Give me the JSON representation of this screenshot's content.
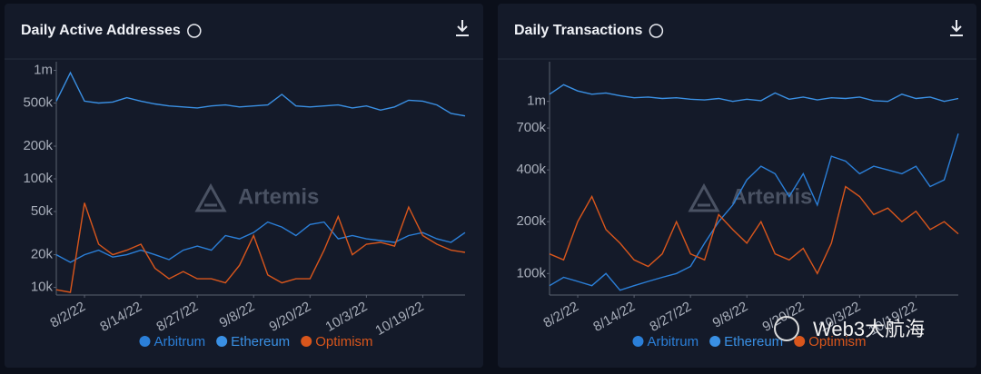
{
  "chart_data": [
    {
      "type": "line",
      "title": "Daily Active Addresses",
      "watermark": "Artemis",
      "log_scale": true,
      "grid": false,
      "categories": [
        null,
        null,
        "8/2/22",
        null,
        null,
        null,
        "8/14/22",
        null,
        null,
        null,
        "8/27/22",
        null,
        null,
        null,
        "9/8/22",
        null,
        null,
        null,
        "9/20/22",
        null,
        null,
        null,
        "10/3/22",
        null,
        null,
        null,
        "10/19/22",
        null,
        null,
        null
      ],
      "ylim": [
        8500,
        1200000
      ],
      "yticks": [
        {
          "value": 10000,
          "label": "10k"
        },
        {
          "value": 20000,
          "label": "20k"
        },
        {
          "value": 50000,
          "label": "50k"
        },
        {
          "value": 100000,
          "label": "100k"
        },
        {
          "value": 200000,
          "label": "200k"
        },
        {
          "value": 500000,
          "label": "500k"
        },
        {
          "value": 1000000,
          "label": "1m"
        }
      ],
      "series": [
        {
          "name": "Arbitrum",
          "color": "#2b7fd8",
          "values": [
            20000,
            17000,
            20000,
            22000,
            19000,
            20000,
            22000,
            20000,
            18000,
            22000,
            24000,
            22000,
            30000,
            28000,
            32000,
            40000,
            36000,
            30000,
            38000,
            40000,
            28000,
            30000,
            28000,
            27000,
            26000,
            30000,
            32000,
            28000,
            26000,
            32000
          ]
        },
        {
          "name": "Ethereum",
          "color": "#3a90e4",
          "values": [
            520000,
            950000,
            520000,
            500000,
            510000,
            560000,
            520000,
            490000,
            470000,
            460000,
            450000,
            470000,
            480000,
            460000,
            470000,
            480000,
            600000,
            470000,
            460000,
            470000,
            480000,
            450000,
            470000,
            430000,
            460000,
            530000,
            520000,
            480000,
            400000,
            380000
          ]
        },
        {
          "name": "Optimism",
          "color": "#d9561c",
          "values": [
            9500,
            9000,
            60000,
            25000,
            20000,
            22000,
            25000,
            15000,
            12000,
            14000,
            12000,
            12000,
            11000,
            16000,
            30000,
            13000,
            11000,
            12000,
            12000,
            22000,
            45000,
            20000,
            25000,
            26000,
            24000,
            55000,
            30000,
            25000,
            22000,
            21000
          ]
        }
      ]
    },
    {
      "type": "line",
      "title": "Daily Transactions",
      "watermark": "Artemis",
      "log_scale": true,
      "grid": false,
      "categories": [
        null,
        null,
        "8/2/22",
        null,
        null,
        null,
        "8/14/22",
        null,
        null,
        null,
        "8/27/22",
        null,
        null,
        null,
        "9/8/22",
        null,
        null,
        null,
        "9/20/22",
        null,
        null,
        null,
        "10/3/22",
        null,
        null,
        null,
        "10/19/22",
        null,
        null,
        null
      ],
      "ylim": [
        75000,
        1700000
      ],
      "yticks": [
        {
          "value": 100000,
          "label": "100k"
        },
        {
          "value": 200000,
          "label": "200k"
        },
        {
          "value": 400000,
          "label": "400k"
        },
        {
          "value": 700000,
          "label": "700k"
        },
        {
          "value": 1000000,
          "label": "1m"
        }
      ],
      "series": [
        {
          "name": "Arbitrum",
          "color": "#2b7fd8",
          "values": [
            85000,
            95000,
            90000,
            85000,
            100000,
            80000,
            85000,
            90000,
            95000,
            100000,
            110000,
            150000,
            200000,
            250000,
            350000,
            420000,
            380000,
            280000,
            380000,
            250000,
            480000,
            450000,
            380000,
            420000,
            400000,
            380000,
            420000,
            320000,
            350000,
            650000
          ]
        },
        {
          "name": "Ethereum",
          "color": "#3a90e4",
          "values": [
            1100000,
            1250000,
            1150000,
            1100000,
            1120000,
            1080000,
            1050000,
            1060000,
            1040000,
            1050000,
            1030000,
            1020000,
            1040000,
            1000000,
            1030000,
            1010000,
            1120000,
            1030000,
            1060000,
            1020000,
            1050000,
            1040000,
            1060000,
            1010000,
            1000000,
            1100000,
            1040000,
            1060000,
            1000000,
            1040000
          ]
        },
        {
          "name": "Optimism",
          "color": "#d9561c",
          "values": [
            130000,
            120000,
            200000,
            280000,
            180000,
            150000,
            120000,
            110000,
            130000,
            200000,
            130000,
            120000,
            220000,
            180000,
            150000,
            200000,
            130000,
            120000,
            140000,
            100000,
            150000,
            320000,
            280000,
            220000,
            240000,
            200000,
            230000,
            180000,
            200000,
            170000
          ]
        }
      ]
    }
  ],
  "overlay_text": "Web3大航海"
}
